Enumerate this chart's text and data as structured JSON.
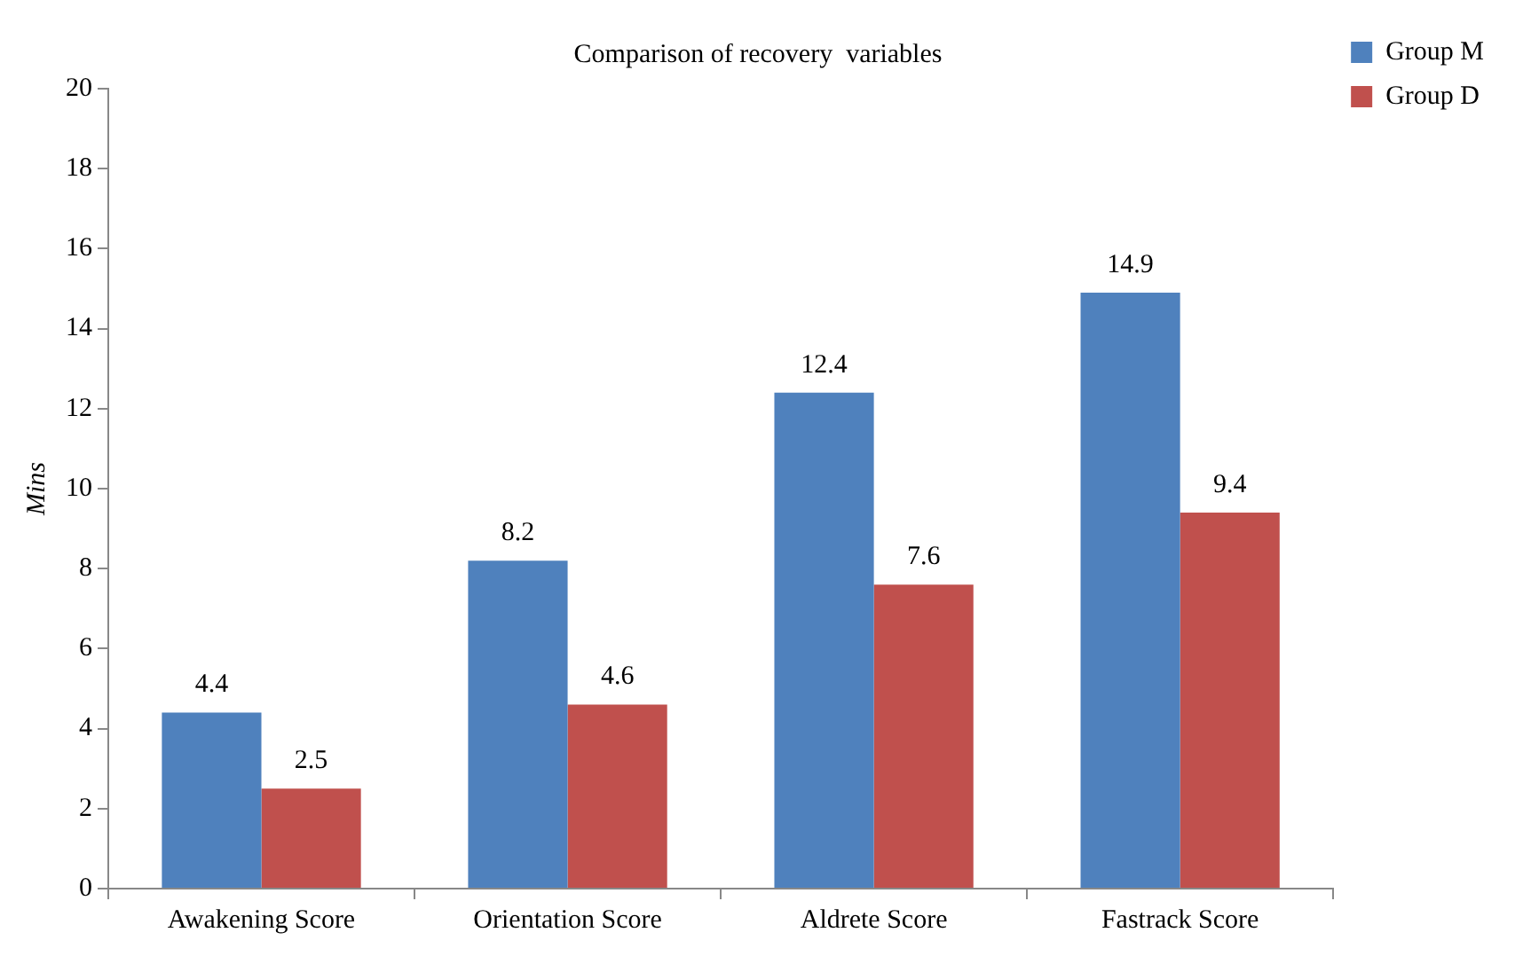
{
  "chart_data": {
    "type": "bar",
    "title": "Comparison of recovery  variables",
    "ylabel": "Mins",
    "categories": [
      "Awakening Score",
      "Orientation Score",
      "Aldrete Score",
      "Fastrack Score"
    ],
    "series": [
      {
        "name": "Group M",
        "color": "#4f81bd",
        "values": [
          4.4,
          8.2,
          12.4,
          14.9
        ]
      },
      {
        "name": "Group D",
        "color": "#c0504d",
        "values": [
          2.5,
          4.6,
          7.6,
          9.4
        ]
      }
    ],
    "ylim": [
      0,
      20
    ],
    "yticks": [
      0,
      2,
      4,
      6,
      8,
      10,
      12,
      14,
      16,
      18,
      20
    ],
    "grid": false,
    "legend": "top right",
    "data_labels": true
  }
}
